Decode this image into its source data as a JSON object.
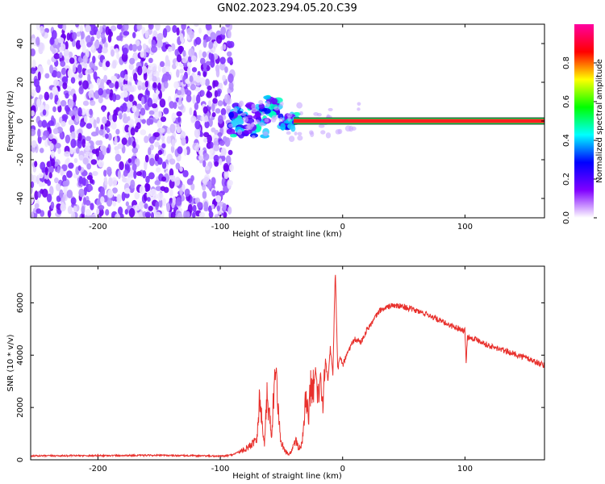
{
  "title": "GN02.2023.294.05.20.C39",
  "chart_data": [
    {
      "type": "heatmap",
      "xlabel": "Height of straight line (km)",
      "ylabel": "Frequency (Hz)",
      "xlim": [
        -255,
        165
      ],
      "ylim": [
        -50,
        50
      ],
      "xticks": [
        -200,
        -100,
        0,
        100
      ],
      "yticks": [
        -40,
        -20,
        0,
        20,
        40
      ],
      "colorbar": {
        "label": "Normalized spectral amplitude",
        "range": [
          0.0,
          1.0
        ],
        "ticks": [
          "0.0",
          "0.2",
          "0.4",
          "0.6",
          "0.8"
        ],
        "colors": [
          "#ffffff",
          "#8000ff",
          "#0000ff",
          "#00ffff",
          "#00ff00",
          "#ffff00",
          "#ff0000",
          "#ff00a0"
        ]
      },
      "features": {
        "noise_region_x": [
          -255,
          -90
        ],
        "carrier_frequency": 0,
        "carrier_start_x": -40
      }
    },
    {
      "type": "line",
      "xlabel": "Height of straight line (km)",
      "ylabel": "SNR (10 * v/v)",
      "xlim": [
        -255,
        165
      ],
      "ylim": [
        0,
        7400
      ],
      "xticks": [
        -200,
        -100,
        0,
        100
      ],
      "yticks": [
        0,
        2000,
        4000,
        6000
      ],
      "color": "#e8302c",
      "series": [
        {
          "x": [
            -255,
            -200,
            -150,
            -100,
            -95,
            -90,
            -85,
            -80,
            -75,
            -70,
            -68,
            -66,
            -64,
            -62,
            -60,
            -58,
            -56,
            -54,
            -52,
            -50,
            -48,
            -46,
            -44,
            -42,
            -40,
            -38,
            -36,
            -34,
            -32,
            -30,
            -28,
            -26,
            -24,
            -22,
            -20,
            -18,
            -16,
            -14,
            -12,
            -10,
            -8,
            -6,
            -4,
            -2,
            0,
            5,
            10,
            15,
            20,
            25,
            30,
            40,
            50,
            60,
            70,
            80,
            90,
            100,
            101,
            102,
            110,
            120,
            130,
            140,
            150,
            160,
            165
          ],
          "y": [
            150,
            160,
            170,
            140,
            150,
            200,
            300,
            400,
            550,
            900,
            2300,
            1500,
            600,
            2400,
            1800,
            1000,
            2800,
            3500,
            1300,
            700,
            400,
            300,
            200,
            300,
            600,
            800,
            400,
            600,
            1000,
            2600,
            1500,
            3000,
            2700,
            3500,
            2400,
            3300,
            1800,
            3800,
            3000,
            4300,
            3200,
            7300,
            3400,
            4000,
            3600,
            4200,
            4600,
            4500,
            5000,
            5300,
            5700,
            5900,
            5850,
            5700,
            5550,
            5300,
            5100,
            4950,
            3700,
            4700,
            4600,
            4350,
            4200,
            4050,
            3900,
            3700,
            3600
          ]
        }
      ]
    }
  ]
}
